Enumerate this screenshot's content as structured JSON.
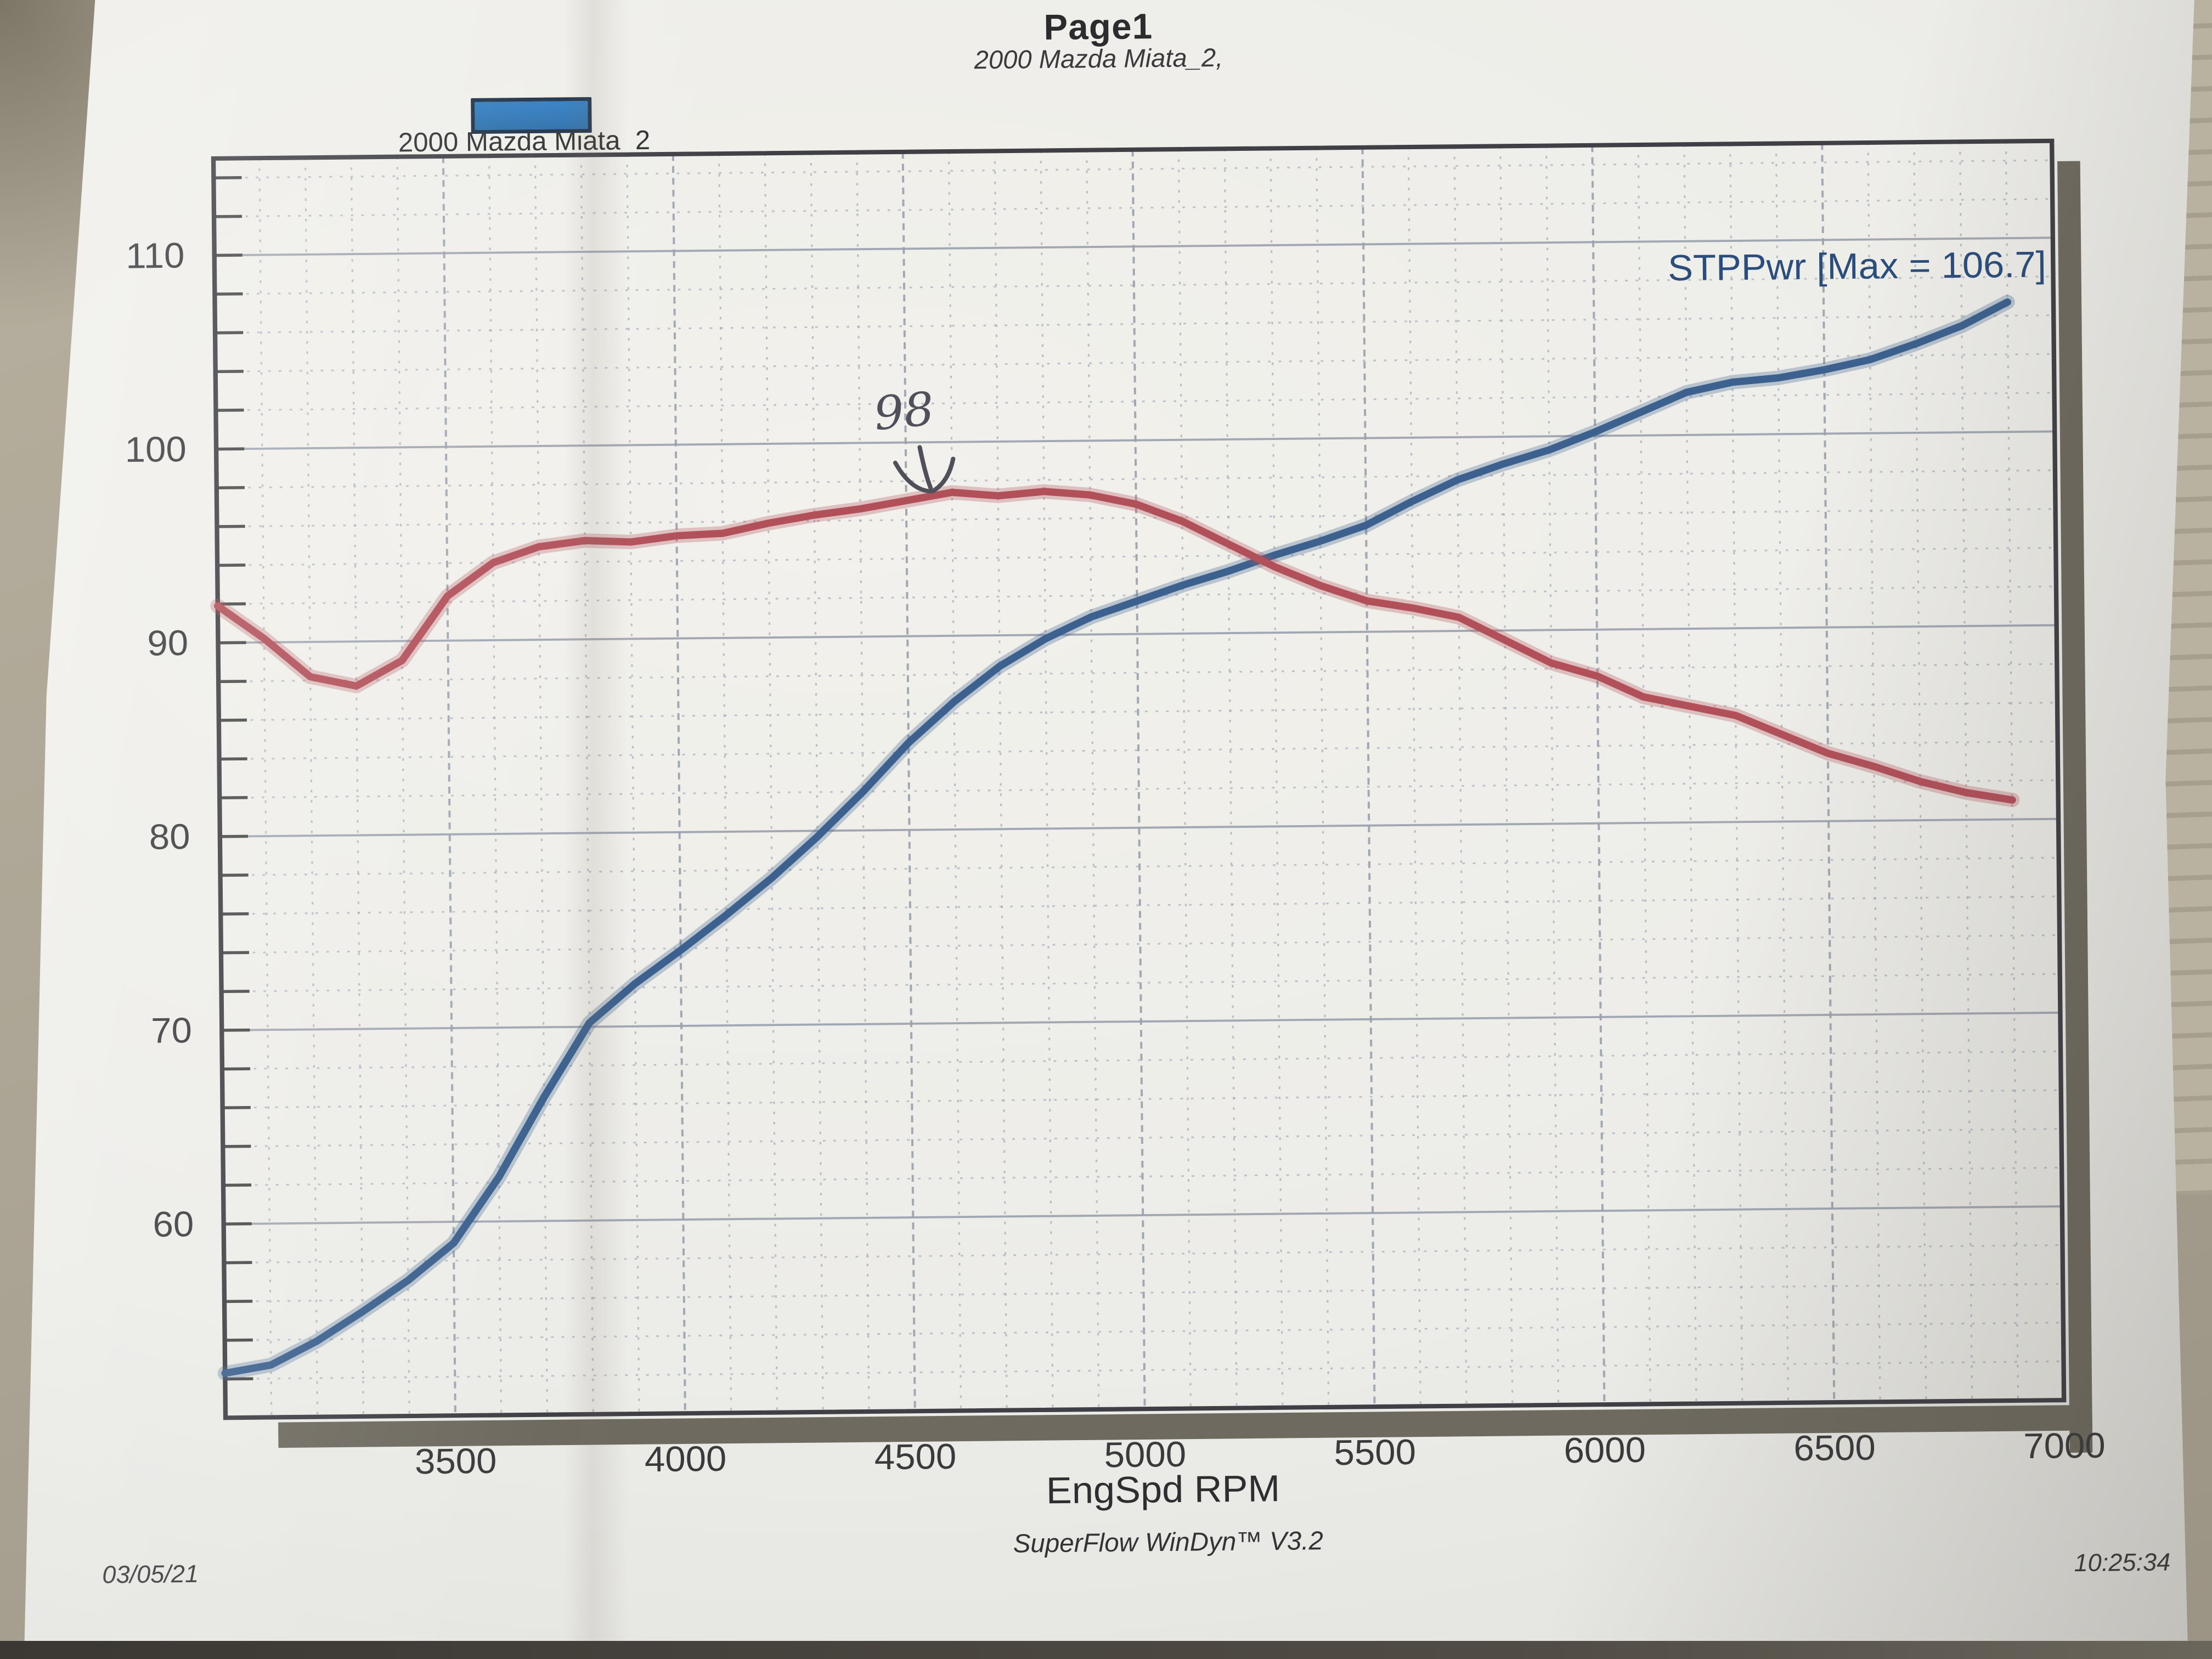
{
  "page": {
    "title": "Page1",
    "subtitle": "2000 Mazda Miata_2,",
    "legend": {
      "label": "2000 Mazda Miata_2",
      "swatch_color": "#2e7bbf"
    },
    "footer": {
      "software": "SuperFlow WinDyn™ V3.2",
      "date": "03/05/21",
      "time": "10:25:34"
    }
  },
  "chart_data": {
    "type": "line",
    "title": "2000 Mazda Miata_2",
    "xlabel": "EngSpd RPM",
    "ylabel": "",
    "xlim": [
      3000,
      7000
    ],
    "ylim": [
      50,
      115
    ],
    "x_ticks": [
      3500,
      4000,
      4500,
      5000,
      5500,
      6000,
      6500,
      7000
    ],
    "y_ticks": [
      60,
      70,
      80,
      90,
      100,
      110
    ],
    "minor_x_step": 100,
    "minor_y_step": 2,
    "grid": true,
    "legend_position": "top-left",
    "annotations": [
      {
        "type": "handwritten",
        "text": "98",
        "x": 4500,
        "y": 100.8,
        "color": "#50505a"
      },
      {
        "type": "series-max-label",
        "text": "STPPwr [Max = 106.7]",
        "x": 6985,
        "y": 108.6,
        "anchor": "end",
        "color": "#2b4d7c"
      }
    ],
    "series": [
      {
        "name": "STPPwr",
        "max": 106.7,
        "color": "#3c618e",
        "points": [
          [
            3000,
            52.3
          ],
          [
            3100,
            52.7
          ],
          [
            3200,
            53.9
          ],
          [
            3300,
            55.4
          ],
          [
            3400,
            57.0
          ],
          [
            3500,
            58.9
          ],
          [
            3600,
            62.3
          ],
          [
            3700,
            66.4
          ],
          [
            3800,
            70.2
          ],
          [
            3900,
            72.2
          ],
          [
            4000,
            73.9
          ],
          [
            4100,
            75.7
          ],
          [
            4200,
            77.6
          ],
          [
            4300,
            79.7
          ],
          [
            4400,
            82.0
          ],
          [
            4500,
            84.5
          ],
          [
            4600,
            86.6
          ],
          [
            4700,
            88.4
          ],
          [
            4800,
            89.8
          ],
          [
            4900,
            90.9
          ],
          [
            5000,
            91.7
          ],
          [
            5100,
            92.5
          ],
          [
            5200,
            93.2
          ],
          [
            5300,
            94.0
          ],
          [
            5400,
            94.7
          ],
          [
            5500,
            95.5
          ],
          [
            5600,
            96.7
          ],
          [
            5700,
            97.8
          ],
          [
            5800,
            98.6
          ],
          [
            5900,
            99.3
          ],
          [
            6000,
            100.2
          ],
          [
            6100,
            101.2
          ],
          [
            6200,
            102.2
          ],
          [
            6300,
            102.7
          ],
          [
            6400,
            102.9
          ],
          [
            6500,
            103.3
          ],
          [
            6600,
            103.8
          ],
          [
            6700,
            104.6
          ],
          [
            6800,
            105.5
          ],
          [
            6900,
            106.7
          ]
        ]
      },
      {
        "name": "",
        "color": "#b2505a",
        "points": [
          [
            3000,
            91.9
          ],
          [
            3100,
            90.2
          ],
          [
            3200,
            88.2
          ],
          [
            3300,
            87.7
          ],
          [
            3400,
            89.0
          ],
          [
            3500,
            92.3
          ],
          [
            3600,
            94.0
          ],
          [
            3700,
            94.8
          ],
          [
            3800,
            95.1
          ],
          [
            3900,
            95.0
          ],
          [
            4000,
            95.3
          ],
          [
            4100,
            95.4
          ],
          [
            4200,
            95.9
          ],
          [
            4300,
            96.3
          ],
          [
            4400,
            96.6
          ],
          [
            4500,
            97.0
          ],
          [
            4600,
            97.4
          ],
          [
            4700,
            97.2
          ],
          [
            4800,
            97.4
          ],
          [
            4900,
            97.2
          ],
          [
            5000,
            96.7
          ],
          [
            5100,
            95.8
          ],
          [
            5200,
            94.6
          ],
          [
            5300,
            93.4
          ],
          [
            5400,
            92.4
          ],
          [
            5500,
            91.6
          ],
          [
            5600,
            91.2
          ],
          [
            5700,
            90.7
          ],
          [
            5800,
            89.5
          ],
          [
            5900,
            88.3
          ],
          [
            6000,
            87.6
          ],
          [
            6100,
            86.5
          ],
          [
            6200,
            86.0
          ],
          [
            6300,
            85.5
          ],
          [
            6400,
            84.5
          ],
          [
            6500,
            83.5
          ],
          [
            6600,
            82.8
          ],
          [
            6700,
            82.0
          ],
          [
            6800,
            81.4
          ],
          [
            6900,
            81.0
          ]
        ]
      }
    ],
    "frame_color": "#403f45",
    "shadow_color": "#6e6a60",
    "grid_minor_color": "#a9aebb",
    "grid_major_color": "#9aa1ae",
    "tick_label_color": "#3a3a3c"
  }
}
